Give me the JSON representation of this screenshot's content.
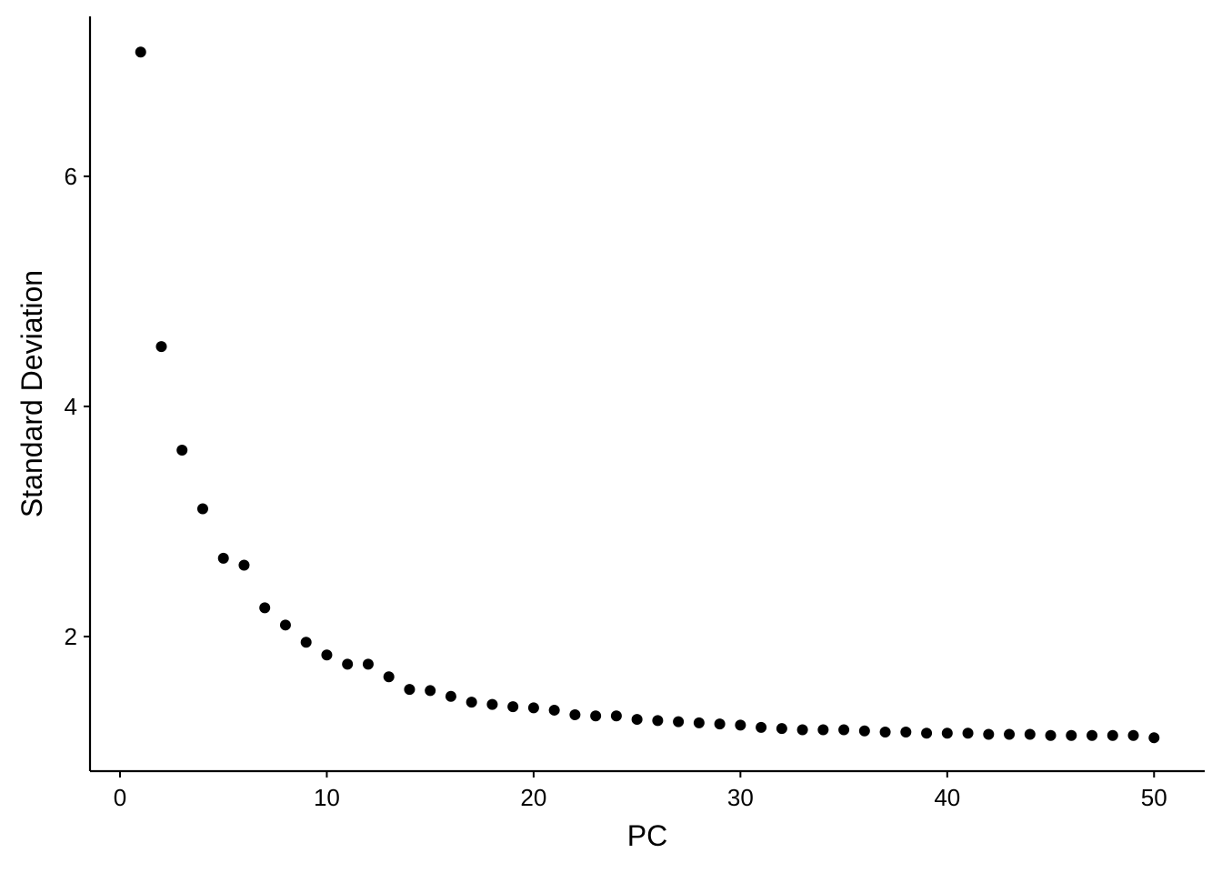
{
  "chart_data": {
    "type": "scatter",
    "x_label": "PC",
    "y_label": "Standard Deviation",
    "x": [
      1,
      2,
      3,
      4,
      5,
      6,
      7,
      8,
      9,
      10,
      11,
      12,
      13,
      14,
      15,
      16,
      17,
      18,
      19,
      20,
      21,
      22,
      23,
      24,
      25,
      26,
      27,
      28,
      29,
      30,
      31,
      32,
      33,
      34,
      35,
      36,
      37,
      38,
      39,
      40,
      41,
      42,
      43,
      44,
      45,
      46,
      47,
      48,
      49,
      50
    ],
    "series": [
      {
        "color": "#000000",
        "values": [
          7.08,
          4.52,
          3.62,
          3.11,
          2.68,
          2.62,
          2.25,
          2.1,
          1.95,
          1.84,
          1.76,
          1.76,
          1.65,
          1.54,
          1.53,
          1.48,
          1.43,
          1.41,
          1.39,
          1.38,
          1.36,
          1.32,
          1.31,
          1.31,
          1.28,
          1.27,
          1.26,
          1.25,
          1.24,
          1.23,
          1.21,
          1.2,
          1.19,
          1.19,
          1.19,
          1.18,
          1.17,
          1.17,
          1.16,
          1.16,
          1.16,
          1.15,
          1.15,
          1.15,
          1.14,
          1.14,
          1.14,
          1.14,
          1.14,
          1.12
        ]
      }
    ],
    "xlim": [
      -1.45,
      52.45
    ],
    "ylim": [
      0.83,
      7.39
    ],
    "xticks": [
      0,
      10,
      20,
      30,
      40,
      50
    ],
    "yticks": [
      2,
      4,
      6
    ],
    "grid": false
  }
}
